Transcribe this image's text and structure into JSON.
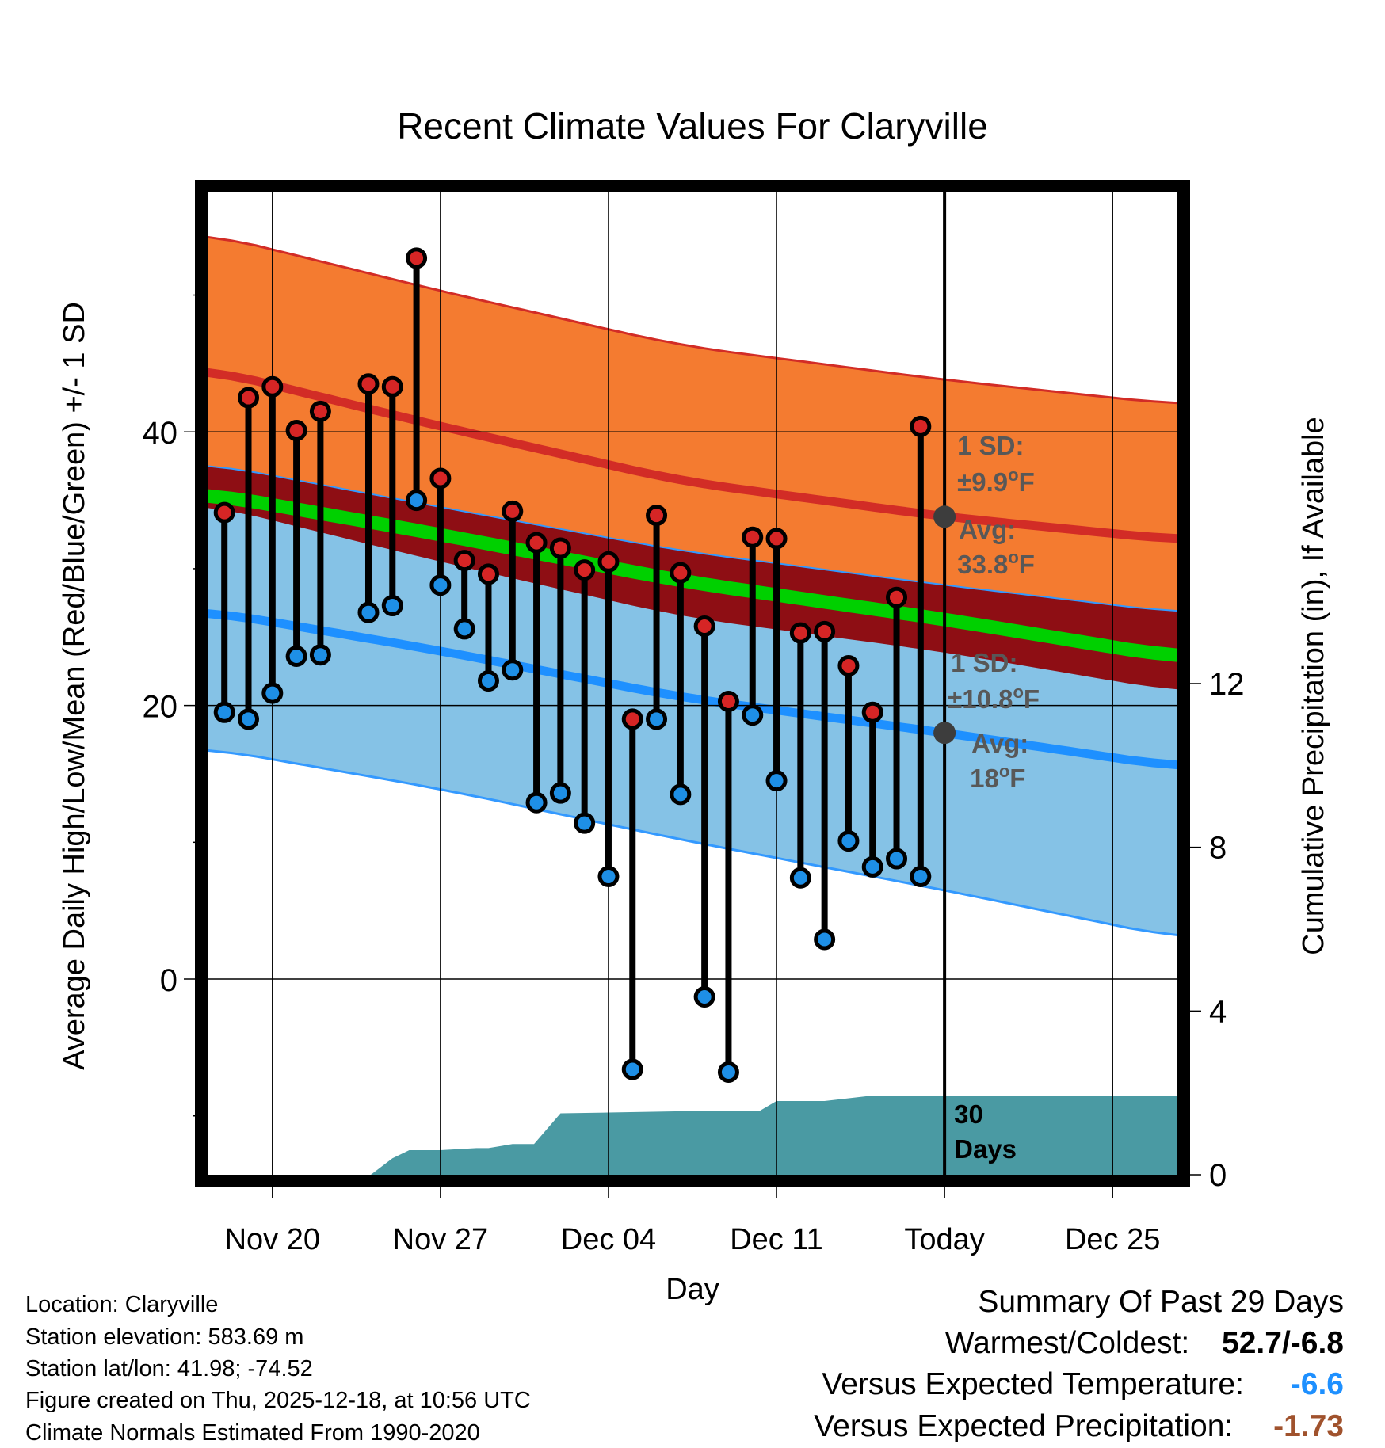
{
  "chart_data": {
    "type": "line",
    "title": "Recent Climate Values For Claryville",
    "xlabel": "Day",
    "ylabel_left": "Average Daily High/Low/Mean (Red/Blue/Green) +/- 1 SD",
    "ylabel_right": "Cumulative Precipitation (in), If Available",
    "x_ticks": [
      {
        "day": 3,
        "label": "Nov 20"
      },
      {
        "day": 10,
        "label": "Nov 27"
      },
      {
        "day": 17,
        "label": "Dec 04"
      },
      {
        "day": 24,
        "label": "Dec 11"
      },
      {
        "day": 31,
        "label": "Today"
      },
      {
        "day": 38,
        "label": "Dec 25"
      }
    ],
    "xlim": [
      0.3,
      40.7
    ],
    "today_day": 31,
    "ylim_left": [
      -14.3,
      57.5
    ],
    "y_ticks_left": [
      0,
      20,
      40
    ],
    "y_minor_ticks_left": [
      -10,
      10,
      30,
      50
    ],
    "ylim_right": [
      0,
      24
    ],
    "y_ticks_right": [
      0,
      4,
      8,
      12
    ],
    "normals": {
      "day": [
        0.3,
        10,
        20,
        31,
        40.7
      ],
      "high_upper": [
        54.5,
        50.3,
        46.3,
        43.8,
        42.0
      ],
      "high_mean": [
        44.6,
        40.4,
        36.4,
        33.8,
        32.1
      ],
      "high_lower": [
        34.7,
        30.5,
        26.5,
        23.9,
        21.0
      ],
      "mean_upper": [
        36.0,
        33.0,
        29.6,
        26.8,
        24.0
      ],
      "mean_avg": [
        35.0,
        32.0,
        28.6,
        25.8,
        23.0
      ],
      "low_upper": [
        37.7,
        34.5,
        31.3,
        28.8,
        26.8
      ],
      "low_mean": [
        26.9,
        24.0,
        20.6,
        18.0,
        15.5
      ],
      "low_lower": [
        16.9,
        13.9,
        10.2,
        6.5,
        3.0
      ]
    },
    "observed": {
      "day": [
        1,
        2,
        3,
        4,
        5,
        7,
        8,
        9,
        10,
        11,
        12,
        13,
        14,
        15,
        16,
        17,
        18,
        19,
        20,
        21,
        22,
        23,
        24,
        25,
        26,
        27,
        28,
        29,
        30
      ],
      "high": [
        34.1,
        42.5,
        43.3,
        40.1,
        41.5,
        43.5,
        43.3,
        52.7,
        36.6,
        30.6,
        29.6,
        34.2,
        31.9,
        31.5,
        29.9,
        30.5,
        19.0,
        33.9,
        29.7,
        25.8,
        20.3,
        32.3,
        32.2,
        25.3,
        25.4,
        22.9,
        19.5,
        27.9,
        40.4
      ],
      "low": [
        19.5,
        19.0,
        20.9,
        23.6,
        23.7,
        26.8,
        27.3,
        35.0,
        28.8,
        25.6,
        21.8,
        22.6,
        12.9,
        13.6,
        11.4,
        7.5,
        -6.6,
        19.0,
        13.5,
        -1.3,
        -6.8,
        19.3,
        14.5,
        7.4,
        2.9,
        10.1,
        8.2,
        8.8,
        7.5
      ]
    },
    "precip": {
      "day": [
        0.3,
        7.1,
        8,
        8.7,
        10,
        11.5,
        12,
        13,
        13.9,
        15,
        17,
        20,
        23.3,
        24,
        25,
        26,
        27.8,
        31,
        40.7
      ],
      "cum": [
        0,
        0,
        0.4,
        0.6,
        0.6,
        0.65,
        0.65,
        0.75,
        0.75,
        1.5,
        1.52,
        1.55,
        1.56,
        1.8,
        1.8,
        1.8,
        1.92,
        1.92,
        1.92
      ]
    },
    "annotations": {
      "high_sd_label": "1 SD:",
      "high_sd_value": "±9.9",
      "high_unit": "F",
      "high_avg_label": "Avg:",
      "high_avg_value": "33.8",
      "low_sd_label": "1 SD:",
      "low_sd_value": "±10.8",
      "low_unit": "F",
      "low_avg_label": "Avg:",
      "low_avg_value": "18",
      "days_count": "30",
      "days_label": "Days"
    },
    "colors": {
      "high_band": "#f47b30",
      "high_line": "#d22c26",
      "low_band": "#85c2e6",
      "low_line": "#1e90ff",
      "low_edge": "#3399ff",
      "mean_band": "#8e0e14",
      "mean_line": "#00d000",
      "precip": "#4a9aa3",
      "high_dot": "#d62525",
      "low_dot": "#1e8fe6",
      "annotation_text": "#585858",
      "today_marker": "#3d3d3d"
    }
  },
  "footer": {
    "location": "Location: Claryville",
    "elevation": "Station elevation: 583.69 m",
    "latlon": "Station lat/lon: 41.98; -74.52",
    "created": "Figure created on Thu, 2025-12-18, at 10:56 UTC",
    "normals": "Climate Normals Estimated From 1990-2020"
  },
  "summary": {
    "title": "Summary Of Past 29 Days",
    "warmest_label": "Warmest/Coldest:",
    "warmest_value": "52.7/-6.8",
    "temp_label": "Versus Expected Temperature:",
    "temp_value": "-6.6",
    "temp_color": "#1e90ff",
    "precip_label": "Versus Expected Precipitation:",
    "precip_value": "-1.73",
    "precip_color": "#a0522d"
  }
}
